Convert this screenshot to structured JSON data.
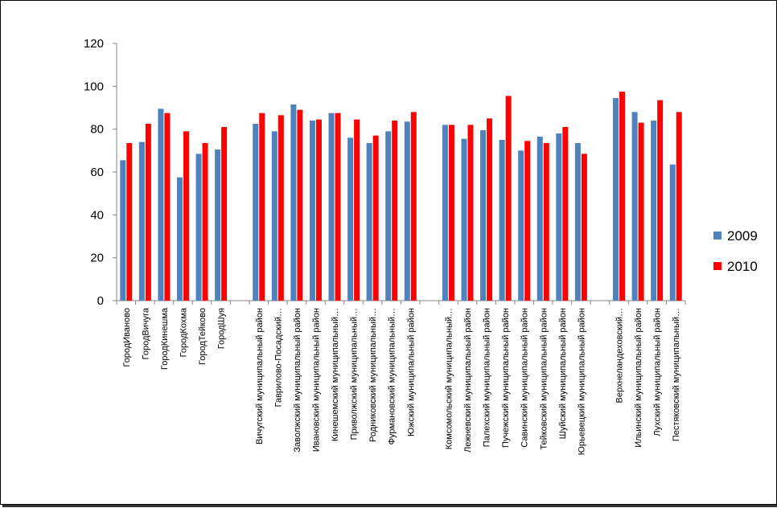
{
  "chart_data": {
    "type": "bar",
    "title": "",
    "xlabel": "",
    "ylabel": "",
    "ylim": [
      0,
      120
    ],
    "yticks": [
      0,
      20,
      40,
      60,
      80,
      100,
      120
    ],
    "grid": false,
    "legend_position": "right",
    "colors": {
      "2009": "#4f81bd",
      "2010": "#ff0000"
    },
    "categories": [
      "ГородИваново",
      "ГородВичуга",
      "ГородКинешма",
      "ГородКохма",
      "ГородТейково",
      "ГородШуя",
      "",
      "Вичугский муниципальный район",
      "Гаврилово-Посадский…",
      "Заволжский муниципальный район",
      "Ивановский муниципальный район",
      "Кинешемский муниципальный…",
      "Приволжский муниципальный…",
      "Родниковский муниципальный…",
      "Фурмановский муниципальный…",
      "Южский муниципальный район",
      "",
      "Комсомольский муниципальный…",
      "Лежневский муниципальный район",
      "Палехский муниципальный район",
      "Пучежский муниципальный район",
      "Савинский муниципальный район",
      "Тейковский муниципальный район",
      "Шуйский муниципальный район",
      "Юрьевецкий муниципальный район",
      "",
      "Верхнеландеховский…",
      "Ильинский муниципальный район",
      "Лухский муниципальный район",
      "Пестяковский муниципальный…"
    ],
    "series": [
      {
        "name": "2009",
        "values": [
          65.5,
          74,
          89.5,
          57.5,
          68.5,
          70.5,
          null,
          82.5,
          79,
          91.5,
          84,
          87.5,
          76,
          73.5,
          79,
          83.5,
          null,
          82,
          75.5,
          79.5,
          75,
          70,
          76.5,
          78,
          73.5,
          null,
          94.5,
          88,
          84,
          63.5
        ]
      },
      {
        "name": "2010",
        "values": [
          73.5,
          82.5,
          87.5,
          79,
          73.5,
          81,
          null,
          87.5,
          86.5,
          89,
          84.5,
          87.5,
          84.5,
          77,
          84,
          88,
          null,
          82,
          82,
          85,
          95.5,
          74.5,
          73.5,
          81,
          68.5,
          null,
          97.5,
          83,
          93.5,
          88
        ]
      }
    ]
  }
}
